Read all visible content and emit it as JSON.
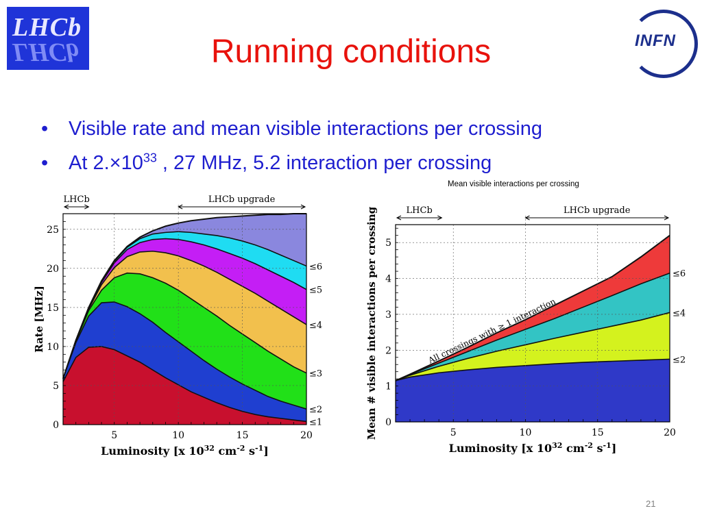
{
  "logos": {
    "lhcb_text": "LHCb",
    "infn_text": "INFN"
  },
  "title": "Running conditions",
  "bullets": [
    {
      "text": "Visible rate and mean visible interactions per crossing"
    },
    {
      "prefix": "At 2.×10",
      "sup": "33",
      "suffix": " , 27 MHz, 5.2 interaction per crossing"
    }
  ],
  "caption": "Mean visible interactions per crossing",
  "page_number": "21",
  "chart_data": [
    {
      "type": "area",
      "title": "",
      "xlabel": "Luminosity [x 10^32 cm^-2 s^-1]",
      "ylabel": "Rate [MHz]",
      "xlim": [
        1,
        20
      ],
      "ylim": [
        0,
        27
      ],
      "xticks": [
        5,
        10,
        15,
        20
      ],
      "yticks": [
        0,
        5,
        10,
        15,
        20,
        25
      ],
      "grid": true,
      "x": [
        1,
        2,
        3,
        4,
        5,
        6,
        7,
        8,
        9,
        10,
        11,
        12,
        13,
        14,
        15,
        16,
        17,
        18,
        19,
        20
      ],
      "series": [
        {
          "name": "≤1",
          "color": "#c8102e",
          "values": [
            5.5,
            8.6,
            9.9,
            10.0,
            9.6,
            8.8,
            8.0,
            7.0,
            6.0,
            5.1,
            4.2,
            3.5,
            2.8,
            2.2,
            1.7,
            1.3,
            1.0,
            0.8,
            0.6,
            0.4
          ]
        },
        {
          "name": "≤2",
          "color": "#1f3fd0",
          "values": [
            5.9,
            10.5,
            13.9,
            15.6,
            15.7,
            15.1,
            14.2,
            13.1,
            11.8,
            10.6,
            9.4,
            8.2,
            7.1,
            6.1,
            5.2,
            4.4,
            3.6,
            3.0,
            2.5,
            2.0
          ]
        },
        {
          "name": "≤3",
          "color": "#21e018",
          "values": [
            5.9,
            10.7,
            14.6,
            17.2,
            18.8,
            19.4,
            19.3,
            18.8,
            18.1,
            17.2,
            16.1,
            15.0,
            13.9,
            12.7,
            11.6,
            10.5,
            9.4,
            8.4,
            7.4,
            6.6
          ]
        },
        {
          "name": "≤4",
          "color": "#f2c04d",
          "values": [
            5.9,
            10.8,
            14.8,
            17.9,
            20.1,
            21.5,
            22.1,
            22.2,
            22.0,
            21.6,
            21.0,
            20.3,
            19.5,
            18.6,
            17.7,
            16.8,
            15.8,
            14.8,
            13.8,
            12.8
          ]
        },
        {
          "name": "≤5",
          "color": "#c41ef5",
          "values": [
            5.9,
            10.8,
            14.9,
            18.2,
            20.7,
            22.4,
            23.3,
            23.7,
            23.8,
            23.7,
            23.4,
            23.0,
            22.5,
            21.9,
            21.3,
            20.6,
            19.8,
            19.0,
            18.2,
            17.3
          ]
        },
        {
          "name": "≤6",
          "color": "#1fdcf2",
          "values": [
            5.9,
            10.8,
            15.0,
            18.3,
            20.9,
            22.7,
            23.8,
            24.4,
            24.6,
            24.7,
            24.6,
            24.4,
            24.2,
            23.9,
            23.5,
            23.0,
            22.4,
            21.7,
            21.0,
            20.3
          ]
        },
        {
          "name": "",
          "color": "#8a87de",
          "values": [
            5.9,
            10.8,
            15.0,
            18.4,
            21.0,
            22.8,
            24.0,
            24.8,
            25.4,
            25.8,
            26.1,
            26.3,
            26.5,
            26.6,
            26.7,
            26.8,
            26.9,
            26.9,
            27.0,
            27.0
          ]
        }
      ],
      "annotations": {
        "lhcb": "LHCb",
        "upgrade": "LHCb upgrade"
      }
    },
    {
      "type": "area",
      "title": "",
      "xlabel": "Luminosity [x 10^32 cm^-2 s^-1]",
      "ylabel": "Mean # visible interactions per crossing",
      "xlim": [
        1,
        20
      ],
      "ylim": [
        0,
        5.5
      ],
      "xticks": [
        5,
        10,
        15,
        20
      ],
      "yticks": [
        0,
        1,
        2,
        3,
        4,
        5
      ],
      "grid": true,
      "x": [
        1,
        2,
        4,
        6,
        8,
        10,
        12,
        14,
        16,
        18,
        20
      ],
      "series": [
        {
          "name": "≤2",
          "color": "#2f39c8",
          "values": [
            1.15,
            1.25,
            1.37,
            1.45,
            1.52,
            1.57,
            1.62,
            1.66,
            1.69,
            1.72,
            1.75
          ]
        },
        {
          "name": "≤4",
          "color": "#d4f21e",
          "values": [
            1.15,
            1.3,
            1.55,
            1.77,
            1.97,
            2.15,
            2.33,
            2.5,
            2.67,
            2.84,
            3.05
          ]
        },
        {
          "name": "≤6",
          "color": "#33c4c4",
          "values": [
            1.15,
            1.32,
            1.64,
            1.96,
            2.28,
            2.58,
            2.88,
            3.2,
            3.52,
            3.85,
            4.15
          ]
        },
        {
          "name": "",
          "color": "#ee3a3a",
          "values": [
            1.15,
            1.33,
            1.7,
            2.08,
            2.48,
            2.85,
            3.25,
            3.65,
            4.05,
            4.6,
            5.2
          ]
        }
      ],
      "annotations": {
        "lhcb": "LHCb",
        "upgrade": "LHCb upgrade",
        "diagonal": "All crossings with ≥ 1 interaction"
      }
    }
  ]
}
